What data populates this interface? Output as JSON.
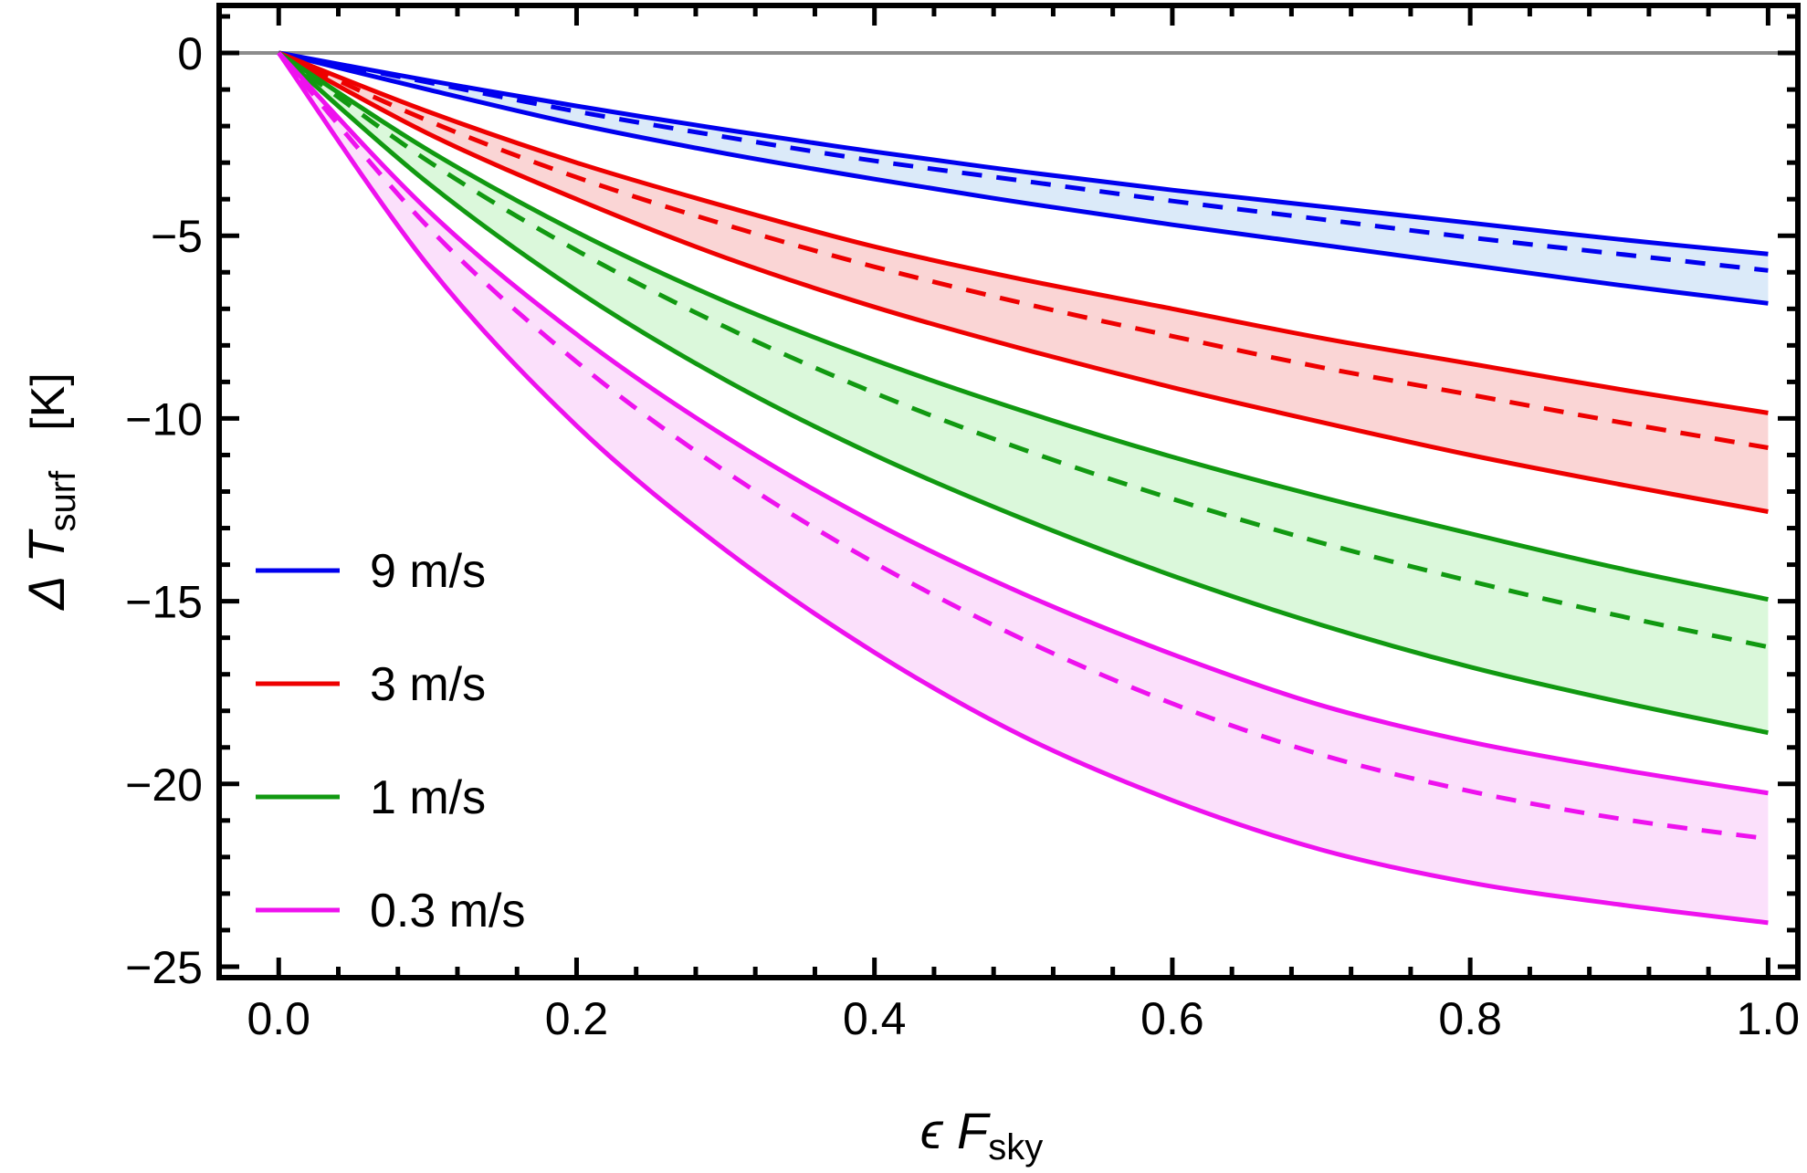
{
  "chart_data": {
    "type": "line",
    "xlabel": {
      "symbol": "ϵ F",
      "subscript": "sky"
    },
    "ylabel": {
      "symbol": "Δ T",
      "subscript": "surf",
      "unit": "[K]"
    },
    "xlim": [
      -0.04,
      1.02
    ],
    "ylim": [
      -25.3,
      1.3
    ],
    "x_ticks": [
      0.0,
      0.2,
      0.4,
      0.6,
      0.8,
      1.0
    ],
    "x_tick_labels": [
      "0.0",
      "0.2",
      "0.4",
      "0.6",
      "0.8",
      "1.0"
    ],
    "y_ticks": [
      0,
      -5,
      -10,
      -15,
      -20,
      -25
    ],
    "y_tick_labels": [
      "0",
      "-5",
      "-10",
      "-15",
      "-20",
      "-25"
    ],
    "reference_line_y": 0,
    "legend_position": "lower-left",
    "series": [
      {
        "name": "9 m/s",
        "color": "#0000ee",
        "fill": "#dbeaf9",
        "x": [
          0,
          0.1,
          0.2,
          0.3,
          0.4,
          0.5,
          0.6,
          0.7,
          0.8,
          0.9,
          1.0
        ],
        "upper": [
          0,
          -0.75,
          -1.45,
          -2.1,
          -2.7,
          -3.25,
          -3.75,
          -4.2,
          -4.65,
          -5.1,
          -5.5
        ],
        "dashed": [
          0,
          -0.8,
          -1.6,
          -2.3,
          -2.95,
          -3.5,
          -4.05,
          -4.55,
          -5.05,
          -5.5,
          -5.95
        ],
        "lower": [
          0,
          -1.0,
          -1.95,
          -2.75,
          -3.45,
          -4.1,
          -4.7,
          -5.25,
          -5.8,
          -6.35,
          -6.85
        ]
      },
      {
        "name": "3 m/s",
        "color": "#ee0000",
        "fill": "#fad5d5",
        "x": [
          0,
          0.1,
          0.2,
          0.3,
          0.4,
          0.5,
          0.6,
          0.7,
          0.8,
          0.9,
          1.0
        ],
        "upper": [
          0,
          -1.6,
          -3.0,
          -4.2,
          -5.3,
          -6.2,
          -7.0,
          -7.8,
          -8.5,
          -9.2,
          -9.85
        ],
        "dashed": [
          0,
          -1.85,
          -3.4,
          -4.7,
          -5.85,
          -6.85,
          -7.75,
          -8.6,
          -9.35,
          -10.1,
          -10.8
        ],
        "lower": [
          0,
          -2.2,
          -4.0,
          -5.6,
          -6.95,
          -8.1,
          -9.15,
          -10.1,
          -11.0,
          -11.8,
          -12.55
        ]
      },
      {
        "name": "1 m/s",
        "color": "#119911",
        "fill": "#dbf8db",
        "x": [
          0,
          0.1,
          0.2,
          0.3,
          0.4,
          0.5,
          0.6,
          0.7,
          0.8,
          0.9,
          1.0
        ],
        "upper": [
          0,
          -2.65,
          -4.9,
          -6.8,
          -8.4,
          -9.8,
          -11.05,
          -12.15,
          -13.15,
          -14.1,
          -14.95
        ],
        "dashed": [
          0,
          -2.95,
          -5.4,
          -7.5,
          -9.3,
          -10.85,
          -12.2,
          -13.4,
          -14.45,
          -15.4,
          -16.25
        ],
        "lower": [
          0,
          -3.55,
          -6.5,
          -8.95,
          -11.0,
          -12.75,
          -14.3,
          -15.65,
          -16.8,
          -17.75,
          -18.6
        ]
      },
      {
        "name": "0.3 m/s",
        "color": "#ee11ee",
        "fill": "#fbe0fb",
        "x": [
          0,
          0.1,
          0.2,
          0.3,
          0.4,
          0.5,
          0.6,
          0.7,
          0.8,
          0.9,
          1.0
        ],
        "upper": [
          0,
          -4.3,
          -7.7,
          -10.5,
          -12.85,
          -14.8,
          -16.45,
          -17.85,
          -18.85,
          -19.6,
          -20.25
        ],
        "dashed": [
          0,
          -4.75,
          -8.45,
          -11.45,
          -13.95,
          -16.05,
          -17.8,
          -19.2,
          -20.2,
          -20.95,
          -21.5
        ],
        "lower": [
          0,
          -5.8,
          -10.2,
          -13.6,
          -16.4,
          -18.7,
          -20.45,
          -21.8,
          -22.7,
          -23.3,
          -23.8
        ]
      }
    ]
  }
}
